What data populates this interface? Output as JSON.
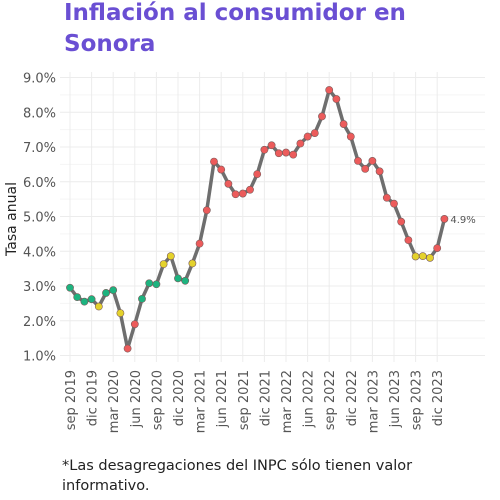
{
  "title": "Inflación al consumidor en Sonora",
  "footnote": "*Las desagregaciones del INPC sólo tienen valor informativo.",
  "colors": {
    "title": "#6a4fd3",
    "line": "#6e6e6e",
    "low": "#1db37f",
    "mid": "#e4d22c",
    "high": "#ec5b5b",
    "grid": "#ececec"
  },
  "chart_data": {
    "type": "line",
    "title": "Inflación al consumidor en Sonora",
    "ylabel": "Tasa anual",
    "xlabel": "",
    "ylim": [
      0.9,
      9.0
    ],
    "yticks": [
      "1.0%",
      "2.0%",
      "3.0%",
      "4.0%",
      "5.0%",
      "6.0%",
      "7.0%",
      "8.0%",
      "9.0%"
    ],
    "xticks": [
      "sep 2019",
      "dic 2019",
      "mar 2020",
      "jun 2020",
      "sep 2020",
      "dic 2020",
      "mar 2021",
      "jun 2021",
      "sep 2021",
      "dic 2021",
      "mar 2022",
      "jun 2022",
      "sep 2022",
      "dic 2022",
      "mar 2023",
      "jun 2023",
      "sep 2023",
      "dic 2023"
    ],
    "grid": true,
    "legend": "none",
    "series": [
      {
        "values": [
          2.95,
          2.68,
          2.55,
          2.62,
          2.41,
          2.8,
          2.88,
          2.22,
          1.2,
          1.9,
          2.63,
          3.08,
          3.05,
          3.63,
          3.86,
          3.22,
          3.15,
          3.65,
          4.22,
          5.18,
          6.58,
          6.35,
          5.94,
          5.64,
          5.66,
          5.77,
          6.22,
          6.92,
          7.05,
          6.82,
          6.84,
          6.78,
          7.1,
          7.3,
          7.4,
          7.88,
          8.64,
          8.38,
          7.66,
          7.3,
          6.6,
          6.37,
          6.6,
          6.3,
          5.54,
          5.37,
          4.85,
          4.32,
          3.85,
          3.86,
          3.81,
          4.09,
          4.93
        ],
        "colors": [
          "low",
          "low",
          "low",
          "low",
          "mid",
          "low",
          "low",
          "mid",
          "high",
          "high",
          "low",
          "low",
          "low",
          "mid",
          "mid",
          "low",
          "low",
          "mid",
          "high",
          "high",
          "high",
          "high",
          "high",
          "high",
          "high",
          "high",
          "high",
          "high",
          "high",
          "high",
          "high",
          "high",
          "high",
          "high",
          "high",
          "high",
          "high",
          "high",
          "high",
          "high",
          "high",
          "high",
          "high",
          "high",
          "high",
          "high",
          "high",
          "high",
          "mid",
          "mid",
          "mid",
          "high",
          "high"
        ]
      }
    ],
    "annotations": [
      {
        "text": "4.9%"
      }
    ]
  }
}
